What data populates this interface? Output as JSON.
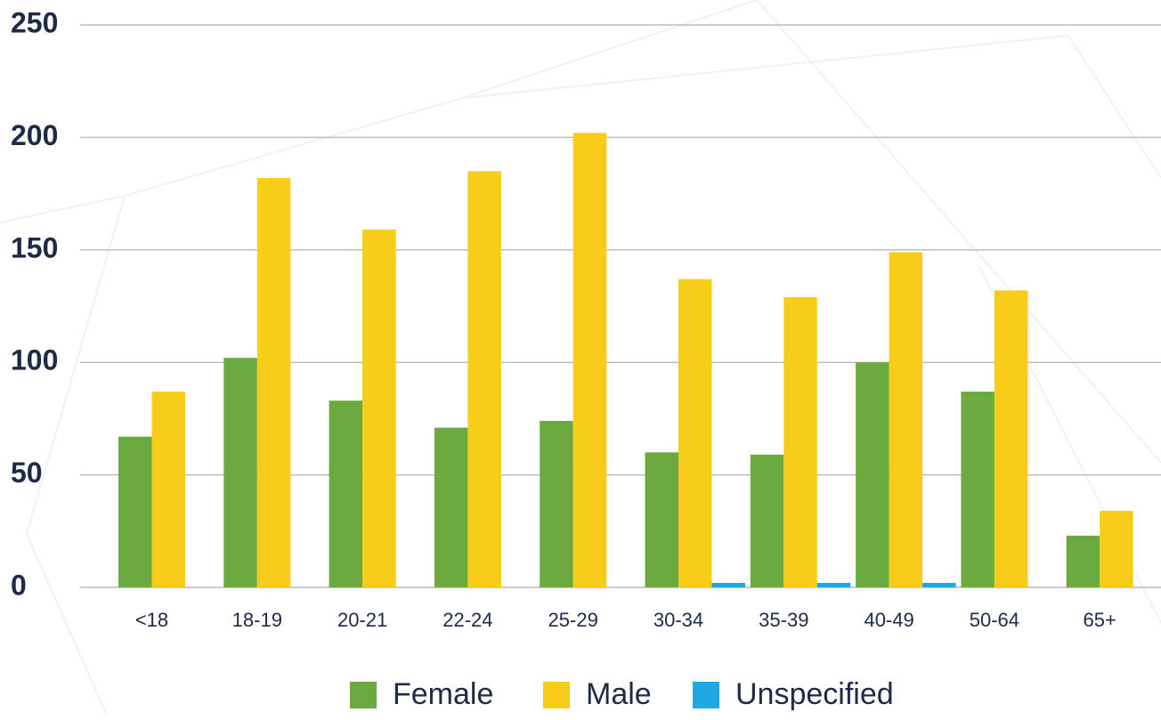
{
  "chart_data": {
    "type": "bar",
    "categories": [
      "<18",
      "18-19",
      "20-21",
      "22-24",
      "25-29",
      "30-34",
      "35-39",
      "40-49",
      "50-64",
      "65+"
    ],
    "series": [
      {
        "name": "Female",
        "color": "#6aaa3f",
        "values": [
          67,
          102,
          83,
          71,
          74,
          60,
          59,
          100,
          87,
          23
        ]
      },
      {
        "name": "Male",
        "color": "#f7cd1a",
        "values": [
          87,
          182,
          159,
          185,
          202,
          137,
          129,
          149,
          132,
          34
        ]
      },
      {
        "name": "Unspecified",
        "color": "#1fa8e0",
        "values": [
          0,
          0,
          0,
          0,
          0,
          2,
          2,
          2,
          0,
          0
        ]
      }
    ],
    "ylim": [
      0,
      250
    ],
    "yticks": [
      0,
      50,
      100,
      150,
      200,
      250
    ],
    "grid": true
  }
}
